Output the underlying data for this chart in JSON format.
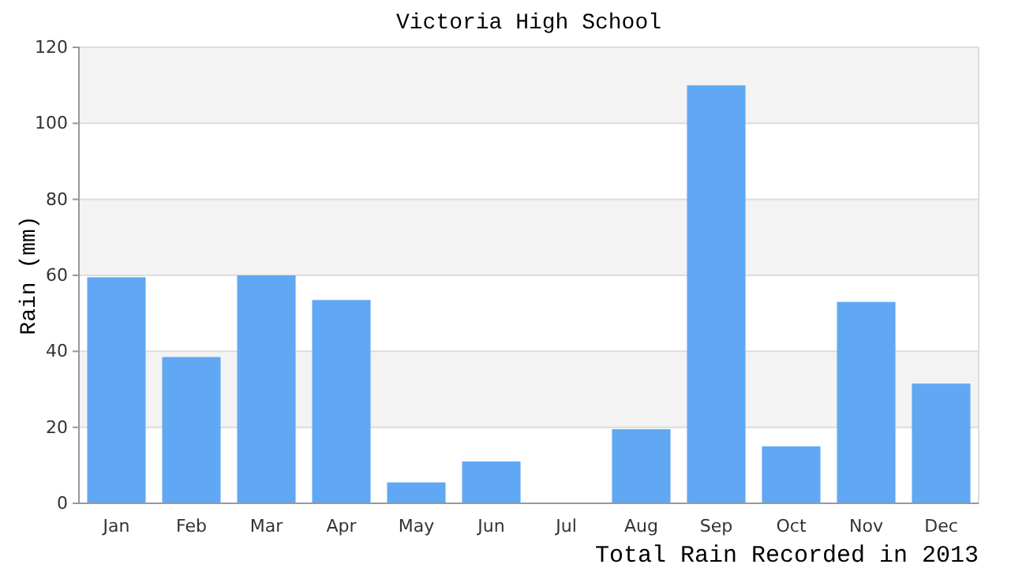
{
  "chart_data": {
    "type": "bar",
    "title": "Victoria High School",
    "xlabel": "Total Rain Recorded in 2013",
    "ylabel": "Rain (mm)",
    "categories": [
      "Jan",
      "Feb",
      "Mar",
      "Apr",
      "May",
      "Jun",
      "Jul",
      "Aug",
      "Sep",
      "Oct",
      "Nov",
      "Dec"
    ],
    "values": [
      59.5,
      38.5,
      60,
      53.5,
      5.5,
      11,
      0,
      19.5,
      110,
      15,
      53,
      31.5
    ],
    "color": "#60a8f4",
    "ylim": [
      0,
      120
    ],
    "yticks": [
      0,
      20,
      40,
      60,
      80,
      100,
      120
    ],
    "grid": "y"
  }
}
